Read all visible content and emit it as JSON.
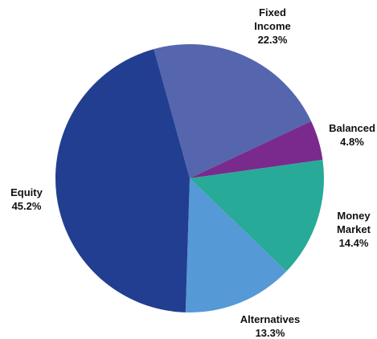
{
  "chart_data": {
    "type": "pie",
    "title": "",
    "start_angle_deg": -105.5,
    "direction": "clockwise",
    "slices": [
      {
        "label_lines": [
          "Fixed",
          "Income"
        ],
        "value_label": "22.3%",
        "value": 22.3,
        "color": "#5566ae"
      },
      {
        "label_lines": [
          "Balanced"
        ],
        "value_label": "4.8%",
        "value": 4.8,
        "color": "#7a2a8c"
      },
      {
        "label_lines": [
          "Money",
          "Market"
        ],
        "value_label": "14.4%",
        "value": 14.4,
        "color": "#27aa98"
      },
      {
        "label_lines": [
          "Alternatives"
        ],
        "value_label": "13.3%",
        "value": 13.3,
        "color": "#5599d6"
      },
      {
        "label_lines": [
          "Equity"
        ],
        "value_label": "45.2%",
        "value": 45.2,
        "color": "#223e90"
      }
    ]
  }
}
